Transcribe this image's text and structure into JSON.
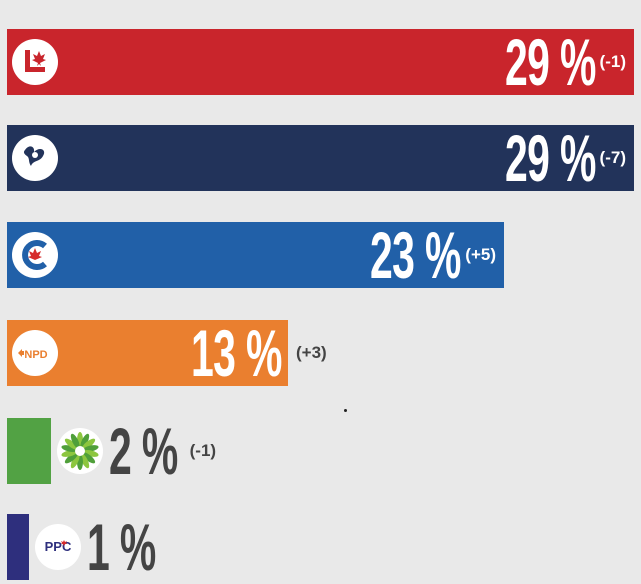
{
  "chart_data": {
    "type": "bar",
    "orientation": "horizontal",
    "categories": [
      "Liberal",
      "Bloc Québécois",
      "Conservative",
      "NPD",
      "Green",
      "PPC"
    ],
    "values": [
      29,
      29,
      23,
      13,
      2,
      1
    ],
    "value_labels": [
      "29 %",
      "29 %",
      "23 %",
      "13 %",
      "2 %",
      "1 %"
    ],
    "changes": [
      "(-1)",
      "(-7)",
      "(+5)",
      "(+3)",
      "(-1)",
      ""
    ],
    "colors": [
      "#c9252c",
      "#22335a",
      "#2160a8",
      "#ea7f2f",
      "#52a244",
      "#2e2f7d"
    ],
    "logos": [
      "liberal-maple-logo",
      "bloc-fleur-logo",
      "conservative-c-logo",
      "npd-logo",
      "green-flower-logo",
      "ppc-logo"
    ],
    "logo_text": [
      "",
      "",
      "",
      "NPD",
      "",
      "PPC"
    ],
    "xlim": [
      0,
      29
    ]
  }
}
